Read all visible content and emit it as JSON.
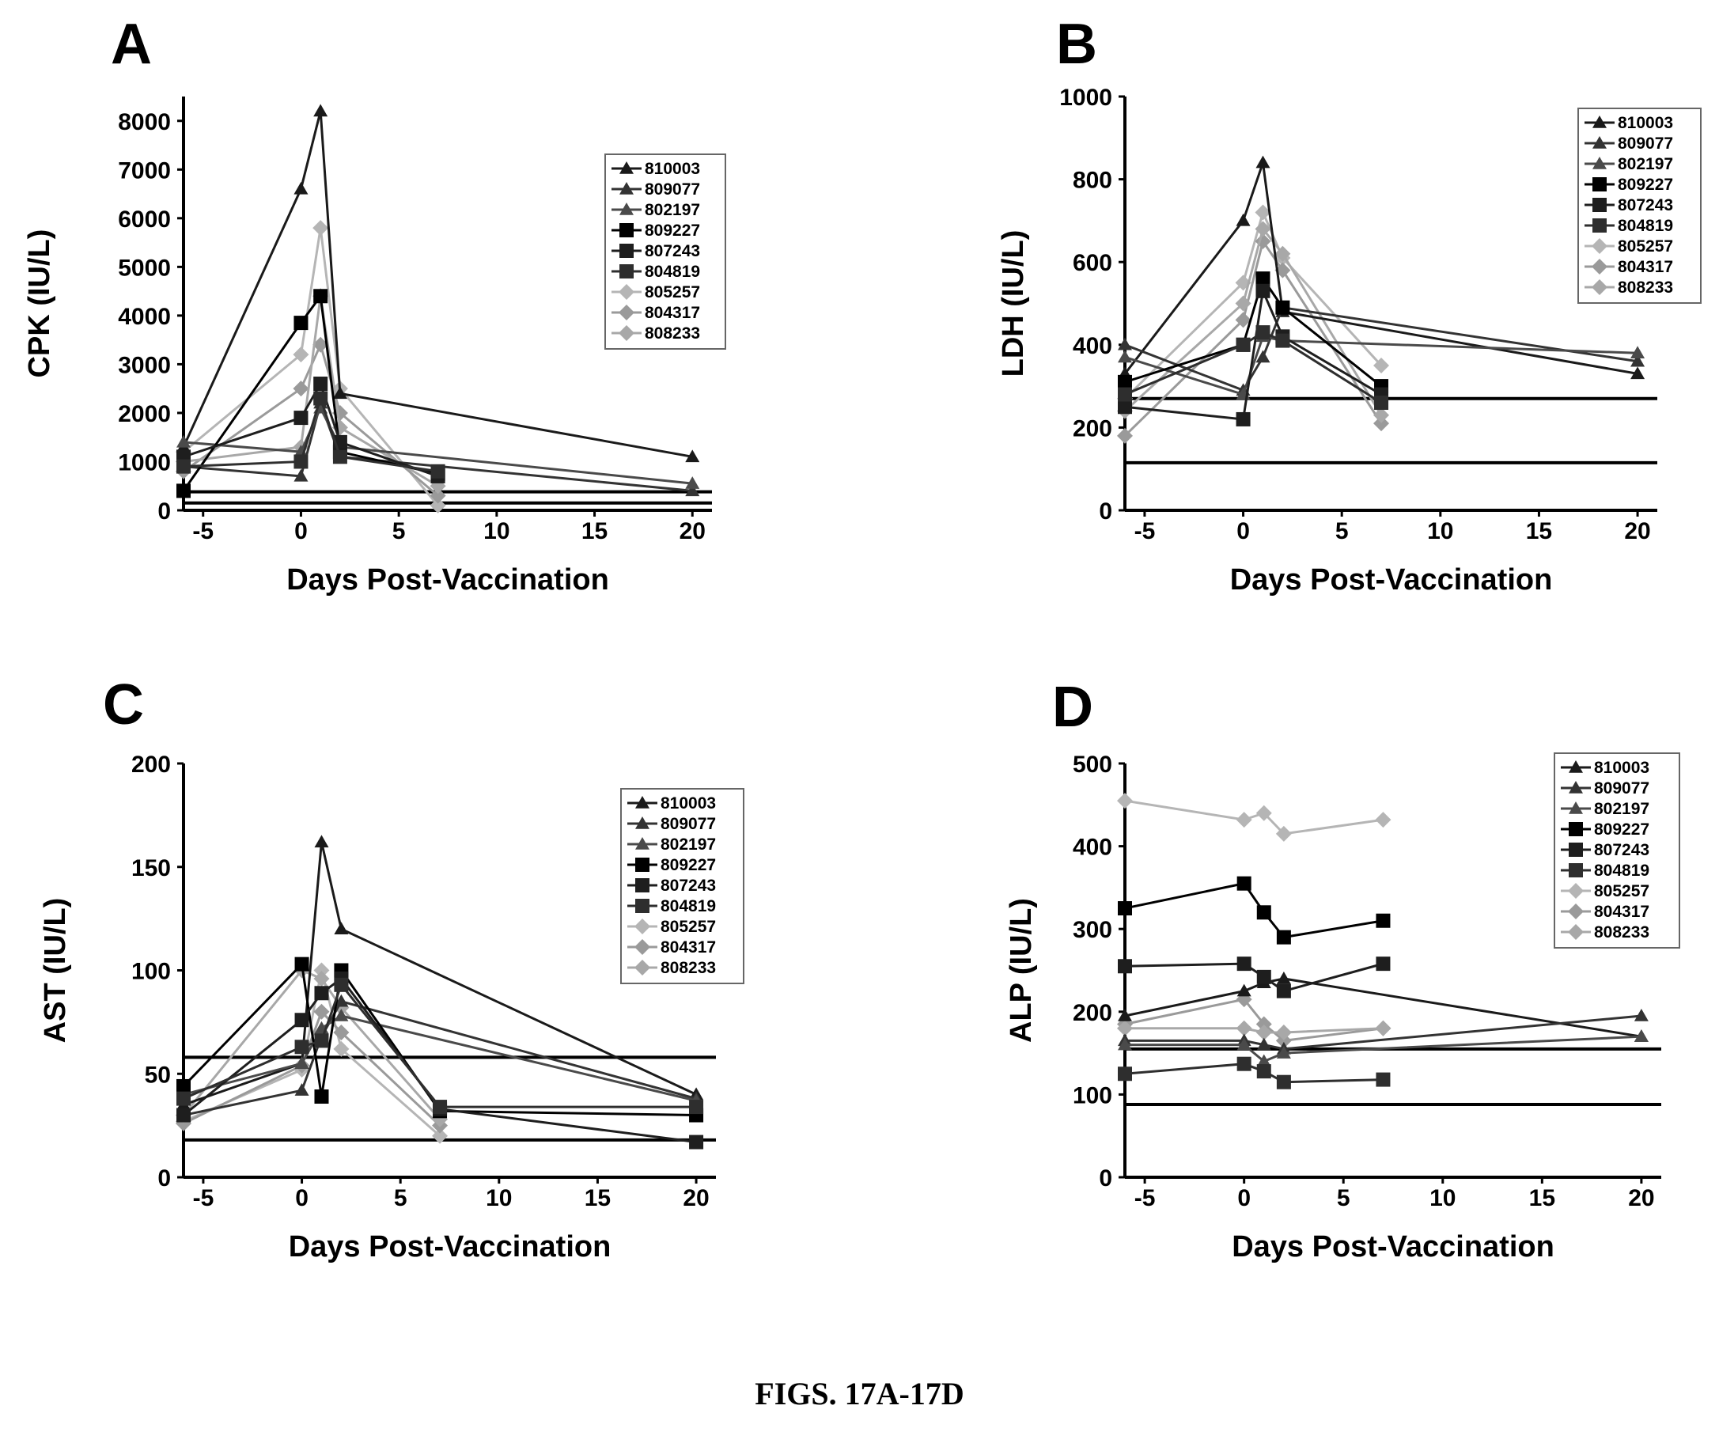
{
  "caption": "FIGS. 17A-17D",
  "series_meta": [
    {
      "name": "810003",
      "marker": "triangle",
      "color": "#1a1a1a"
    },
    {
      "name": "809077",
      "marker": "triangle",
      "color": "#333333"
    },
    {
      "name": "802197",
      "marker": "triangle",
      "color": "#4a4a4a"
    },
    {
      "name": "809227",
      "marker": "square",
      "color": "#000000"
    },
    {
      "name": "807243",
      "marker": "square",
      "color": "#1e1e1e"
    },
    {
      "name": "804819",
      "marker": "square",
      "color": "#2e2e2e"
    },
    {
      "name": "805257",
      "marker": "diamond",
      "color": "#b5b5b5"
    },
    {
      "name": "804317",
      "marker": "diamond",
      "color": "#9a9a9a"
    },
    {
      "name": "808233",
      "marker": "diamond",
      "color": "#a8a8a8"
    }
  ],
  "chart_data": [
    {
      "panel": "A",
      "type": "line",
      "xlabel": "Days Post-Vaccination",
      "ylabel": "CPK (IU/L)",
      "xlim": [
        -6,
        21
      ],
      "ylim": [
        0,
        8500
      ],
      "xticks": [
        -5,
        0,
        5,
        10,
        15,
        20
      ],
      "yticks": [
        0,
        1000,
        2000,
        3000,
        4000,
        5000,
        6000,
        7000,
        8000
      ],
      "reference_lines": [
        150,
        380
      ],
      "series": [
        {
          "name": "810003",
          "x": [
            -6,
            0,
            1,
            2,
            20
          ],
          "y": [
            1300,
            6600,
            8200,
            2400,
            1100
          ]
        },
        {
          "name": "809077",
          "x": [
            -6,
            0,
            1,
            2,
            20
          ],
          "y": [
            900,
            700,
            2200,
            1100,
            400
          ]
        },
        {
          "name": "802197",
          "x": [
            -6,
            0,
            1,
            2,
            20
          ],
          "y": [
            1400,
            1200,
            2100,
            1300,
            550
          ]
        },
        {
          "name": "809227",
          "x": [
            -6,
            0,
            1,
            2,
            7
          ],
          "y": [
            400,
            3850,
            4400,
            1200,
            750
          ]
        },
        {
          "name": "807243",
          "x": [
            -6,
            0,
            1,
            2,
            7
          ],
          "y": [
            1100,
            1900,
            2600,
            1400,
            700
          ]
        },
        {
          "name": "804819",
          "x": [
            -6,
            0,
            1,
            2,
            7
          ],
          "y": [
            900,
            1000,
            2300,
            1100,
            800
          ]
        },
        {
          "name": "805257",
          "x": [
            -6,
            0,
            1,
            2,
            7
          ],
          "y": [
            1200,
            3200,
            5800,
            2500,
            100
          ]
        },
        {
          "name": "804317",
          "x": [
            -6,
            0,
            1,
            2,
            7
          ],
          "y": [
            800,
            2500,
            3400,
            2000,
            300
          ]
        },
        {
          "name": "808233",
          "x": [
            -6,
            0,
            1,
            2,
            7
          ],
          "y": [
            1000,
            1300,
            4400,
            1700,
            500
          ]
        }
      ]
    },
    {
      "panel": "B",
      "type": "line",
      "xlabel": "Days Post-Vaccination",
      "ylabel": "LDH (IU/L)",
      "xlim": [
        -6,
        21
      ],
      "ylim": [
        0,
        1000
      ],
      "xticks": [
        -5,
        0,
        5,
        10,
        15,
        20
      ],
      "yticks": [
        0,
        200,
        400,
        600,
        800,
        1000
      ],
      "reference_lines": [
        115,
        270
      ],
      "series": [
        {
          "name": "810003",
          "x": [
            -6,
            0,
            1,
            2,
            20
          ],
          "y": [
            330,
            700,
            840,
            480,
            330
          ]
        },
        {
          "name": "809077",
          "x": [
            -6,
            0,
            1,
            2,
            20
          ],
          "y": [
            400,
            290,
            370,
            490,
            360
          ]
        },
        {
          "name": "802197",
          "x": [
            -6,
            0,
            1,
            2,
            20
          ],
          "y": [
            370,
            280,
            420,
            410,
            380
          ]
        },
        {
          "name": "809227",
          "x": [
            -6,
            0,
            1,
            2,
            7
          ],
          "y": [
            310,
            400,
            560,
            490,
            300
          ]
        },
        {
          "name": "807243",
          "x": [
            -6,
            0,
            1,
            2,
            7
          ],
          "y": [
            250,
            220,
            530,
            420,
            280
          ]
        },
        {
          "name": "804819",
          "x": [
            -6,
            0,
            1,
            2,
            7
          ],
          "y": [
            280,
            400,
            430,
            410,
            260
          ]
        },
        {
          "name": "805257",
          "x": [
            -6,
            0,
            1,
            2,
            7
          ],
          "y": [
            270,
            550,
            720,
            610,
            350
          ]
        },
        {
          "name": "804317",
          "x": [
            -6,
            0,
            1,
            2,
            7
          ],
          "y": [
            180,
            460,
            650,
            580,
            210
          ]
        },
        {
          "name": "808233",
          "x": [
            -6,
            0,
            1,
            2,
            7
          ],
          "y": [
            240,
            500,
            680,
            620,
            230
          ]
        }
      ]
    },
    {
      "panel": "C",
      "type": "line",
      "xlabel": "Days Post-Vaccination",
      "ylabel": "AST (IU/L)",
      "xlim": [
        -6,
        21
      ],
      "ylim": [
        0,
        200
      ],
      "xticks": [
        -5,
        0,
        5,
        10,
        15,
        20
      ],
      "yticks": [
        0,
        50,
        100,
        150,
        200
      ],
      "reference_lines": [
        18,
        58
      ],
      "series": [
        {
          "name": "810003",
          "x": [
            -6,
            0,
            1,
            2,
            20
          ],
          "y": [
            35,
            55,
            162,
            120,
            40
          ]
        },
        {
          "name": "809077",
          "x": [
            -6,
            0,
            1,
            2,
            20
          ],
          "y": [
            30,
            42,
            68,
            85,
            38
          ]
        },
        {
          "name": "802197",
          "x": [
            -6,
            0,
            1,
            2,
            20
          ],
          "y": [
            40,
            55,
            72,
            78,
            37
          ]
        },
        {
          "name": "809227",
          "x": [
            -6,
            0,
            1,
            2,
            7,
            20
          ],
          "y": [
            44,
            103,
            39,
            100,
            32,
            30
          ]
        },
        {
          "name": "807243",
          "x": [
            -6,
            0,
            1,
            2,
            7,
            20
          ],
          "y": [
            30,
            76,
            89,
            96,
            33,
            17
          ]
        },
        {
          "name": "804819",
          "x": [
            -6,
            0,
            1,
            2,
            7,
            20
          ],
          "y": [
            38,
            63,
            66,
            93,
            34,
            34
          ]
        },
        {
          "name": "805257",
          "x": [
            -6,
            0,
            1,
            2,
            7
          ],
          "y": [
            27,
            52,
            100,
            62,
            20
          ]
        },
        {
          "name": "804317",
          "x": [
            -6,
            0,
            1,
            2,
            7
          ],
          "y": [
            26,
            54,
            80,
            70,
            25
          ]
        },
        {
          "name": "808233",
          "x": [
            -6,
            0,
            1,
            2,
            7
          ],
          "y": [
            30,
            100,
            96,
            82,
            28
          ]
        }
      ]
    },
    {
      "panel": "D",
      "type": "line",
      "xlabel": "Days Post-Vaccination",
      "ylabel": "ALP (IU/L)",
      "xlim": [
        -6,
        21
      ],
      "ylim": [
        0,
        500
      ],
      "xticks": [
        -5,
        0,
        5,
        10,
        15,
        20
      ],
      "yticks": [
        0,
        100,
        200,
        300,
        400,
        500
      ],
      "reference_lines": [
        88,
        155
      ],
      "series": [
        {
          "name": "810003",
          "x": [
            -6,
            0,
            1,
            2,
            20
          ],
          "y": [
            195,
            225,
            235,
            240,
            170
          ]
        },
        {
          "name": "809077",
          "x": [
            -6,
            0,
            1,
            2,
            20
          ],
          "y": [
            165,
            165,
            160,
            155,
            195
          ]
        },
        {
          "name": "802197",
          "x": [
            -6,
            0,
            1,
            2,
            20
          ],
          "y": [
            160,
            160,
            140,
            150,
            170
          ]
        },
        {
          "name": "809227",
          "x": [
            -6,
            0,
            1,
            2,
            7
          ],
          "y": [
            325,
            355,
            320,
            290,
            310
          ]
        },
        {
          "name": "807243",
          "x": [
            -6,
            0,
            1,
            2,
            7
          ],
          "y": [
            255,
            258,
            242,
            225,
            258
          ]
        },
        {
          "name": "804819",
          "x": [
            -6,
            0,
            1,
            2,
            7
          ],
          "y": [
            125,
            137,
            128,
            115,
            118
          ]
        },
        {
          "name": "805257",
          "x": [
            -6,
            0,
            1,
            2,
            7
          ],
          "y": [
            455,
            432,
            440,
            415,
            432
          ]
        },
        {
          "name": "804317",
          "x": [
            -6,
            0,
            1,
            2,
            7
          ],
          "y": [
            185,
            215,
            185,
            165,
            180
          ]
        },
        {
          "name": "808233",
          "x": [
            -6,
            0,
            1,
            2,
            7
          ],
          "y": [
            180,
            180,
            175,
            175,
            180
          ]
        }
      ]
    }
  ]
}
